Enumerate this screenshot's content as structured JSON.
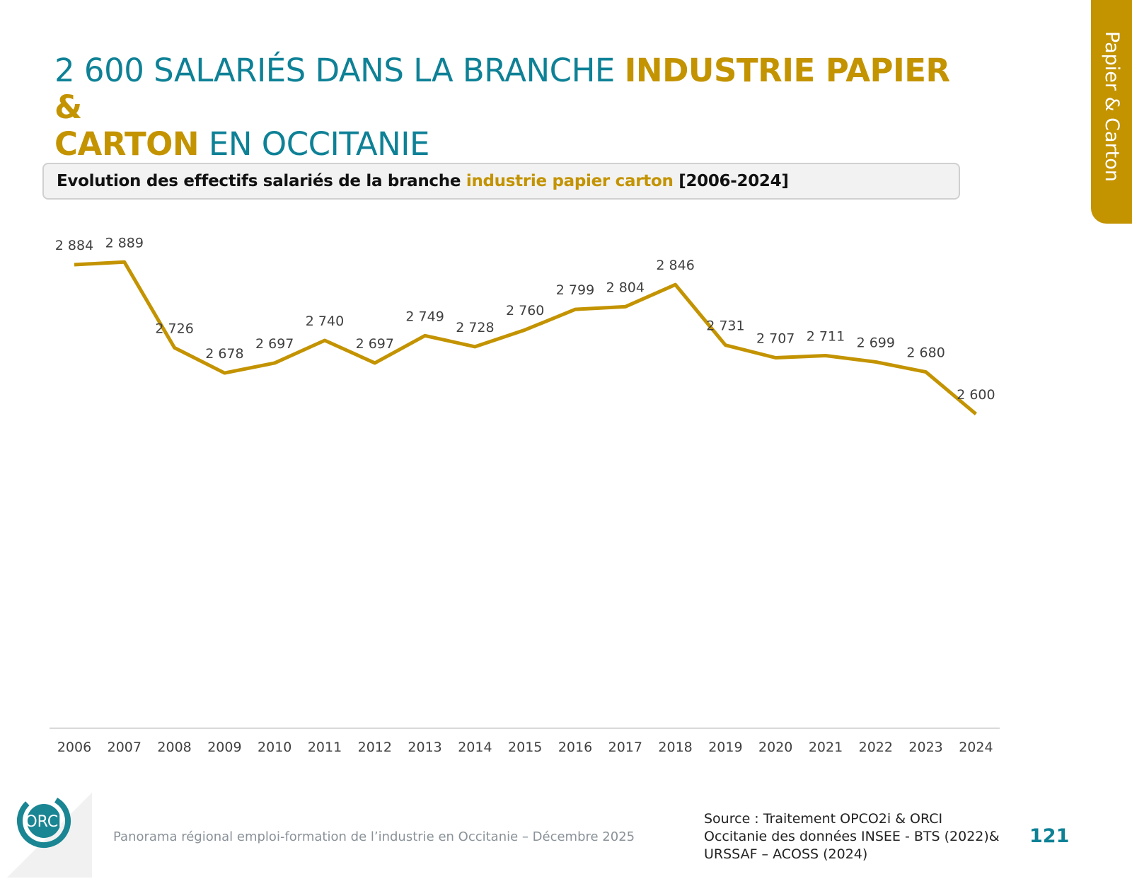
{
  "title": {
    "part1": "2 600 SALARIÉS DANS LA BRANCHE ",
    "highlight1": "INDUSTRIE PAPIER &",
    "highlight2": "CARTON",
    "part2": " EN OCCITANIE"
  },
  "side_tab": {
    "label": "Papier & Carton"
  },
  "subtitle": {
    "part1": "Evolution des effectifs salariés de la branche ",
    "highlight": "industrie papier carton",
    "part2": " [2006-2024]"
  },
  "chart_data": {
    "type": "line",
    "categories": [
      "2006",
      "2007",
      "2008",
      "2009",
      "2010",
      "2011",
      "2012",
      "2013",
      "2014",
      "2015",
      "2016",
      "2017",
      "2018",
      "2019",
      "2020",
      "2021",
      "2022",
      "2023",
      "2024"
    ],
    "values": [
      2884,
      2889,
      2726,
      2678,
      2697,
      2740,
      2697,
      2749,
      2728,
      2760,
      2799,
      2804,
      2846,
      2731,
      2707,
      2711,
      2699,
      2680,
      2600
    ],
    "data_labels": [
      "2 884",
      "2 889",
      "2 726",
      "2 678",
      "2 697",
      "2 740",
      "2 697",
      "2 749",
      "2 728",
      "2 760",
      "2 799",
      "2 804",
      "2 846",
      "2 731",
      "2 707",
      "2 711",
      "2 699",
      "2 680",
      "2 600"
    ],
    "color": "#c39300",
    "grid": false,
    "legend": "none"
  },
  "footer": {
    "text": "Panorama régional emploi-formation de l’industrie en Occitanie – Décembre 2025",
    "logo_text": "ORCI"
  },
  "source": {
    "line1": "Source : Traitement OPCO2i & ORCI",
    "line2": "Occitanie des données  INSEE - BTS (2022)&",
    "line3": "URSSAF – ACOSS (2024)"
  },
  "page_number": "121",
  "colors": {
    "teal": "#0e8196",
    "gold": "#c39300"
  }
}
